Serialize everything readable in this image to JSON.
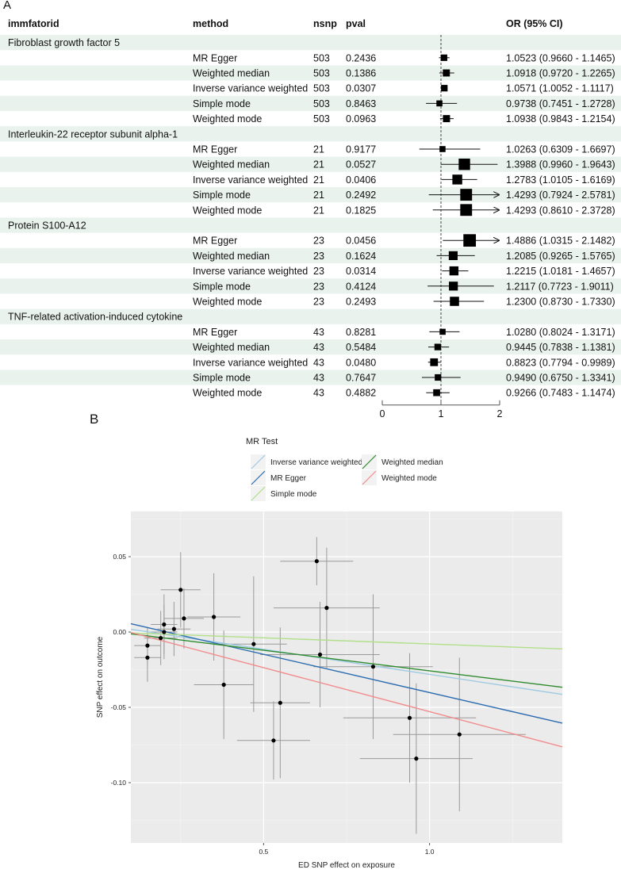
{
  "panel_a_label": "A",
  "panel_b_label": "B",
  "chart_data": [
    {
      "type": "table",
      "columns": [
        "immfatorid",
        "method",
        "nsnp",
        "pval",
        "OR (95% CI)"
      ],
      "xlim": [
        0,
        2
      ],
      "xticks": [
        "0",
        "1",
        "2"
      ],
      "reference_line": 1,
      "groups": [
        {
          "name": "Fibroblast growth factor 5",
          "rows": [
            {
              "method": "MR Egger",
              "nsnp": "503",
              "pval": "0.2436",
              "or": 1.0523,
              "lo": 0.966,
              "hi": 1.1465,
              "ci": "1.0523 (0.9660 - 1.1465)"
            },
            {
              "method": "Weighted median",
              "nsnp": "503",
              "pval": "0.1386",
              "or": 1.0918,
              "lo": 0.972,
              "hi": 1.2265,
              "ci": "1.0918 (0.9720 - 1.2265)"
            },
            {
              "method": "Inverse variance weighted",
              "nsnp": "503",
              "pval": "0.0307",
              "or": 1.0571,
              "lo": 1.0052,
              "hi": 1.1117,
              "ci": "1.0571 (1.0052 - 1.1117)"
            },
            {
              "method": "Simple mode",
              "nsnp": "503",
              "pval": "0.8463",
              "or": 0.9738,
              "lo": 0.7451,
              "hi": 1.2728,
              "ci": "0.9738 (0.7451 - 1.2728)"
            },
            {
              "method": "Weighted mode",
              "nsnp": "503",
              "pval": "0.0963",
              "or": 1.0938,
              "lo": 0.9843,
              "hi": 1.2154,
              "ci": "1.0938 (0.9843 - 1.2154)"
            }
          ]
        },
        {
          "name": "Interleukin-22 receptor subunit alpha-1",
          "rows": [
            {
              "method": "MR Egger",
              "nsnp": "21",
              "pval": "0.9177",
              "or": 1.0263,
              "lo": 0.6309,
              "hi": 1.6697,
              "ci": "1.0263 (0.6309 - 1.6697)"
            },
            {
              "method": "Weighted median",
              "nsnp": "21",
              "pval": "0.0527",
              "or": 1.3988,
              "lo": 0.996,
              "hi": 1.9643,
              "ci": "1.3988 (0.9960 - 1.9643)"
            },
            {
              "method": "Inverse variance weighted",
              "nsnp": "21",
              "pval": "0.0406",
              "or": 1.2783,
              "lo": 1.0105,
              "hi": 1.6169,
              "ci": "1.2783 (1.0105 - 1.6169)"
            },
            {
              "method": "Simple mode",
              "nsnp": "21",
              "pval": "0.2492",
              "or": 1.4293,
              "lo": 0.7924,
              "hi": 2.5781,
              "ci": "1.4293 (0.7924 - 2.5781)"
            },
            {
              "method": "Weighted mode",
              "nsnp": "21",
              "pval": "0.1825",
              "or": 1.4293,
              "lo": 0.861,
              "hi": 2.3728,
              "ci": "1.4293 (0.8610 - 2.3728)"
            }
          ]
        },
        {
          "name": "Protein S100-A12",
          "rows": [
            {
              "method": "MR Egger",
              "nsnp": "23",
              "pval": "0.0456",
              "or": 1.4886,
              "lo": 1.0315,
              "hi": 2.1482,
              "ci": "1.4886 (1.0315 - 2.1482)"
            },
            {
              "method": "Weighted median",
              "nsnp": "23",
              "pval": "0.1624",
              "or": 1.2085,
              "lo": 0.9265,
              "hi": 1.5765,
              "ci": "1.2085 (0.9265 - 1.5765)"
            },
            {
              "method": "Inverse variance weighted",
              "nsnp": "23",
              "pval": "0.0314",
              "or": 1.2215,
              "lo": 1.0181,
              "hi": 1.4657,
              "ci": "1.2215 (1.0181 - 1.4657)"
            },
            {
              "method": "Simple mode",
              "nsnp": "23",
              "pval": "0.4124",
              "or": 1.2117,
              "lo": 0.7723,
              "hi": 1.9011,
              "ci": "1.2117 (0.7723 - 1.9011)"
            },
            {
              "method": "Weighted mode",
              "nsnp": "23",
              "pval": "0.2493",
              "or": 1.23,
              "lo": 0.873,
              "hi": 1.733,
              "ci": "1.2300 (0.8730 - 1.7330)"
            }
          ]
        },
        {
          "name": "TNF-related activation-induced cytokine",
          "rows": [
            {
              "method": "MR Egger",
              "nsnp": "43",
              "pval": "0.8281",
              "or": 1.028,
              "lo": 0.8024,
              "hi": 1.3171,
              "ci": "1.0280 (0.8024 - 1.3171)"
            },
            {
              "method": "Weighted median",
              "nsnp": "43",
              "pval": "0.5484",
              "or": 0.9445,
              "lo": 0.7838,
              "hi": 1.1381,
              "ci": "0.9445 (0.7838 - 1.1381)"
            },
            {
              "method": "Inverse variance weighted",
              "nsnp": "43",
              "pval": "0.0480",
              "or": 0.8823,
              "lo": 0.7794,
              "hi": 0.9989,
              "ci": "0.8823 (0.7794 - 0.9989)"
            },
            {
              "method": "Simple mode",
              "nsnp": "43",
              "pval": "0.7647",
              "or": 0.949,
              "lo": 0.675,
              "hi": 1.3341,
              "ci": "0.9490 (0.6750 - 1.3341)"
            },
            {
              "method": "Weighted mode",
              "nsnp": "43",
              "pval": "0.4882",
              "or": 0.9266,
              "lo": 0.7483,
              "hi": 1.1474,
              "ci": "0.9266 (0.7483 - 1.1474)"
            }
          ]
        }
      ]
    },
    {
      "type": "scatter",
      "xlabel": "ED SNP effect on exposure",
      "ylabel": "SNP effect on outcome",
      "xlim": [
        0.1,
        1.4
      ],
      "ylim": [
        -0.14,
        0.08
      ],
      "xticks": [
        0.5,
        1.0
      ],
      "xtick_labels": [
        "0.5",
        "1.0"
      ],
      "yticks": [
        0.05,
        0.0,
        -0.05,
        -0.1
      ],
      "ytick_labels": [
        "0.05",
        "0.00",
        "-0.05",
        "-0.10"
      ],
      "background": "#ebebeb",
      "legend": {
        "title": "MR Test",
        "position": "top",
        "entries": [
          "Inverse variance weighted",
          "Weighted median",
          "MR Egger",
          "Weighted mode",
          "Simple mode"
        ]
      },
      "points": [
        {
          "x": 0.15,
          "y": -0.009,
          "xerr": 0.04,
          "yerr": 0.012
        },
        {
          "x": 0.15,
          "y": -0.017,
          "xerr": 0.04,
          "yerr": 0.016
        },
        {
          "x": 0.19,
          "y": -0.004,
          "xerr": 0.05,
          "yerr": 0.018
        },
        {
          "x": 0.2,
          "y": 0.005,
          "xerr": 0.04,
          "yerr": 0.02
        },
        {
          "x": 0.2,
          "y": 0.0,
          "xerr": 0.04,
          "yerr": 0.018
        },
        {
          "x": 0.23,
          "y": 0.002,
          "xerr": 0.05,
          "yerr": 0.018
        },
        {
          "x": 0.25,
          "y": 0.028,
          "xerr": 0.06,
          "yerr": 0.025
        },
        {
          "x": 0.26,
          "y": 0.009,
          "xerr": 0.06,
          "yerr": 0.02
        },
        {
          "x": 0.35,
          "y": 0.01,
          "xerr": 0.08,
          "yerr": 0.029
        },
        {
          "x": 0.38,
          "y": -0.035,
          "xerr": 0.09,
          "yerr": 0.036
        },
        {
          "x": 0.47,
          "y": -0.008,
          "xerr": 0.1,
          "yerr": 0.045
        },
        {
          "x": 0.53,
          "y": -0.072,
          "xerr": 0.11,
          "yerr": 0.026
        },
        {
          "x": 0.55,
          "y": -0.047,
          "xerr": 0.09,
          "yerr": 0.05
        },
        {
          "x": 0.66,
          "y": 0.047,
          "xerr": 0.11,
          "yerr": 0.016
        },
        {
          "x": 0.67,
          "y": -0.015,
          "xerr": 0.18,
          "yerr": 0.035
        },
        {
          "x": 0.69,
          "y": 0.016,
          "xerr": 0.16,
          "yerr": 0.04
        },
        {
          "x": 0.83,
          "y": -0.023,
          "xerr": 0.18,
          "yerr": 0.048
        },
        {
          "x": 0.94,
          "y": -0.057,
          "xerr": 0.2,
          "yerr": 0.043
        },
        {
          "x": 0.96,
          "y": -0.084,
          "xerr": 0.17,
          "yerr": 0.05
        },
        {
          "x": 1.09,
          "y": -0.068,
          "xerr": 0.2,
          "yerr": 0.051
        }
      ],
      "series": [
        {
          "name": "Inverse variance weighted",
          "color": "#9ecae1",
          "x": [
            0.1,
            1.4
          ],
          "y": [
            0.0018,
            -0.0414
          ]
        },
        {
          "name": "MR Egger",
          "color": "#2b6cb0",
          "x": [
            0.1,
            1.4
          ],
          "y": [
            0.0055,
            -0.0605
          ]
        },
        {
          "name": "Simple mode",
          "color": "#b2df8a",
          "x": [
            0.1,
            1.4
          ],
          "y": [
            -0.0006,
            -0.0112
          ]
        },
        {
          "name": "Weighted median",
          "color": "#2e8b2e",
          "x": [
            0.1,
            1.4
          ],
          "y": [
            -0.0012,
            -0.0367
          ]
        },
        {
          "name": "Weighted mode",
          "color": "#f28b8b",
          "x": [
            0.1,
            1.4
          ],
          "y": [
            -0.0003,
            -0.0762
          ]
        }
      ]
    }
  ]
}
